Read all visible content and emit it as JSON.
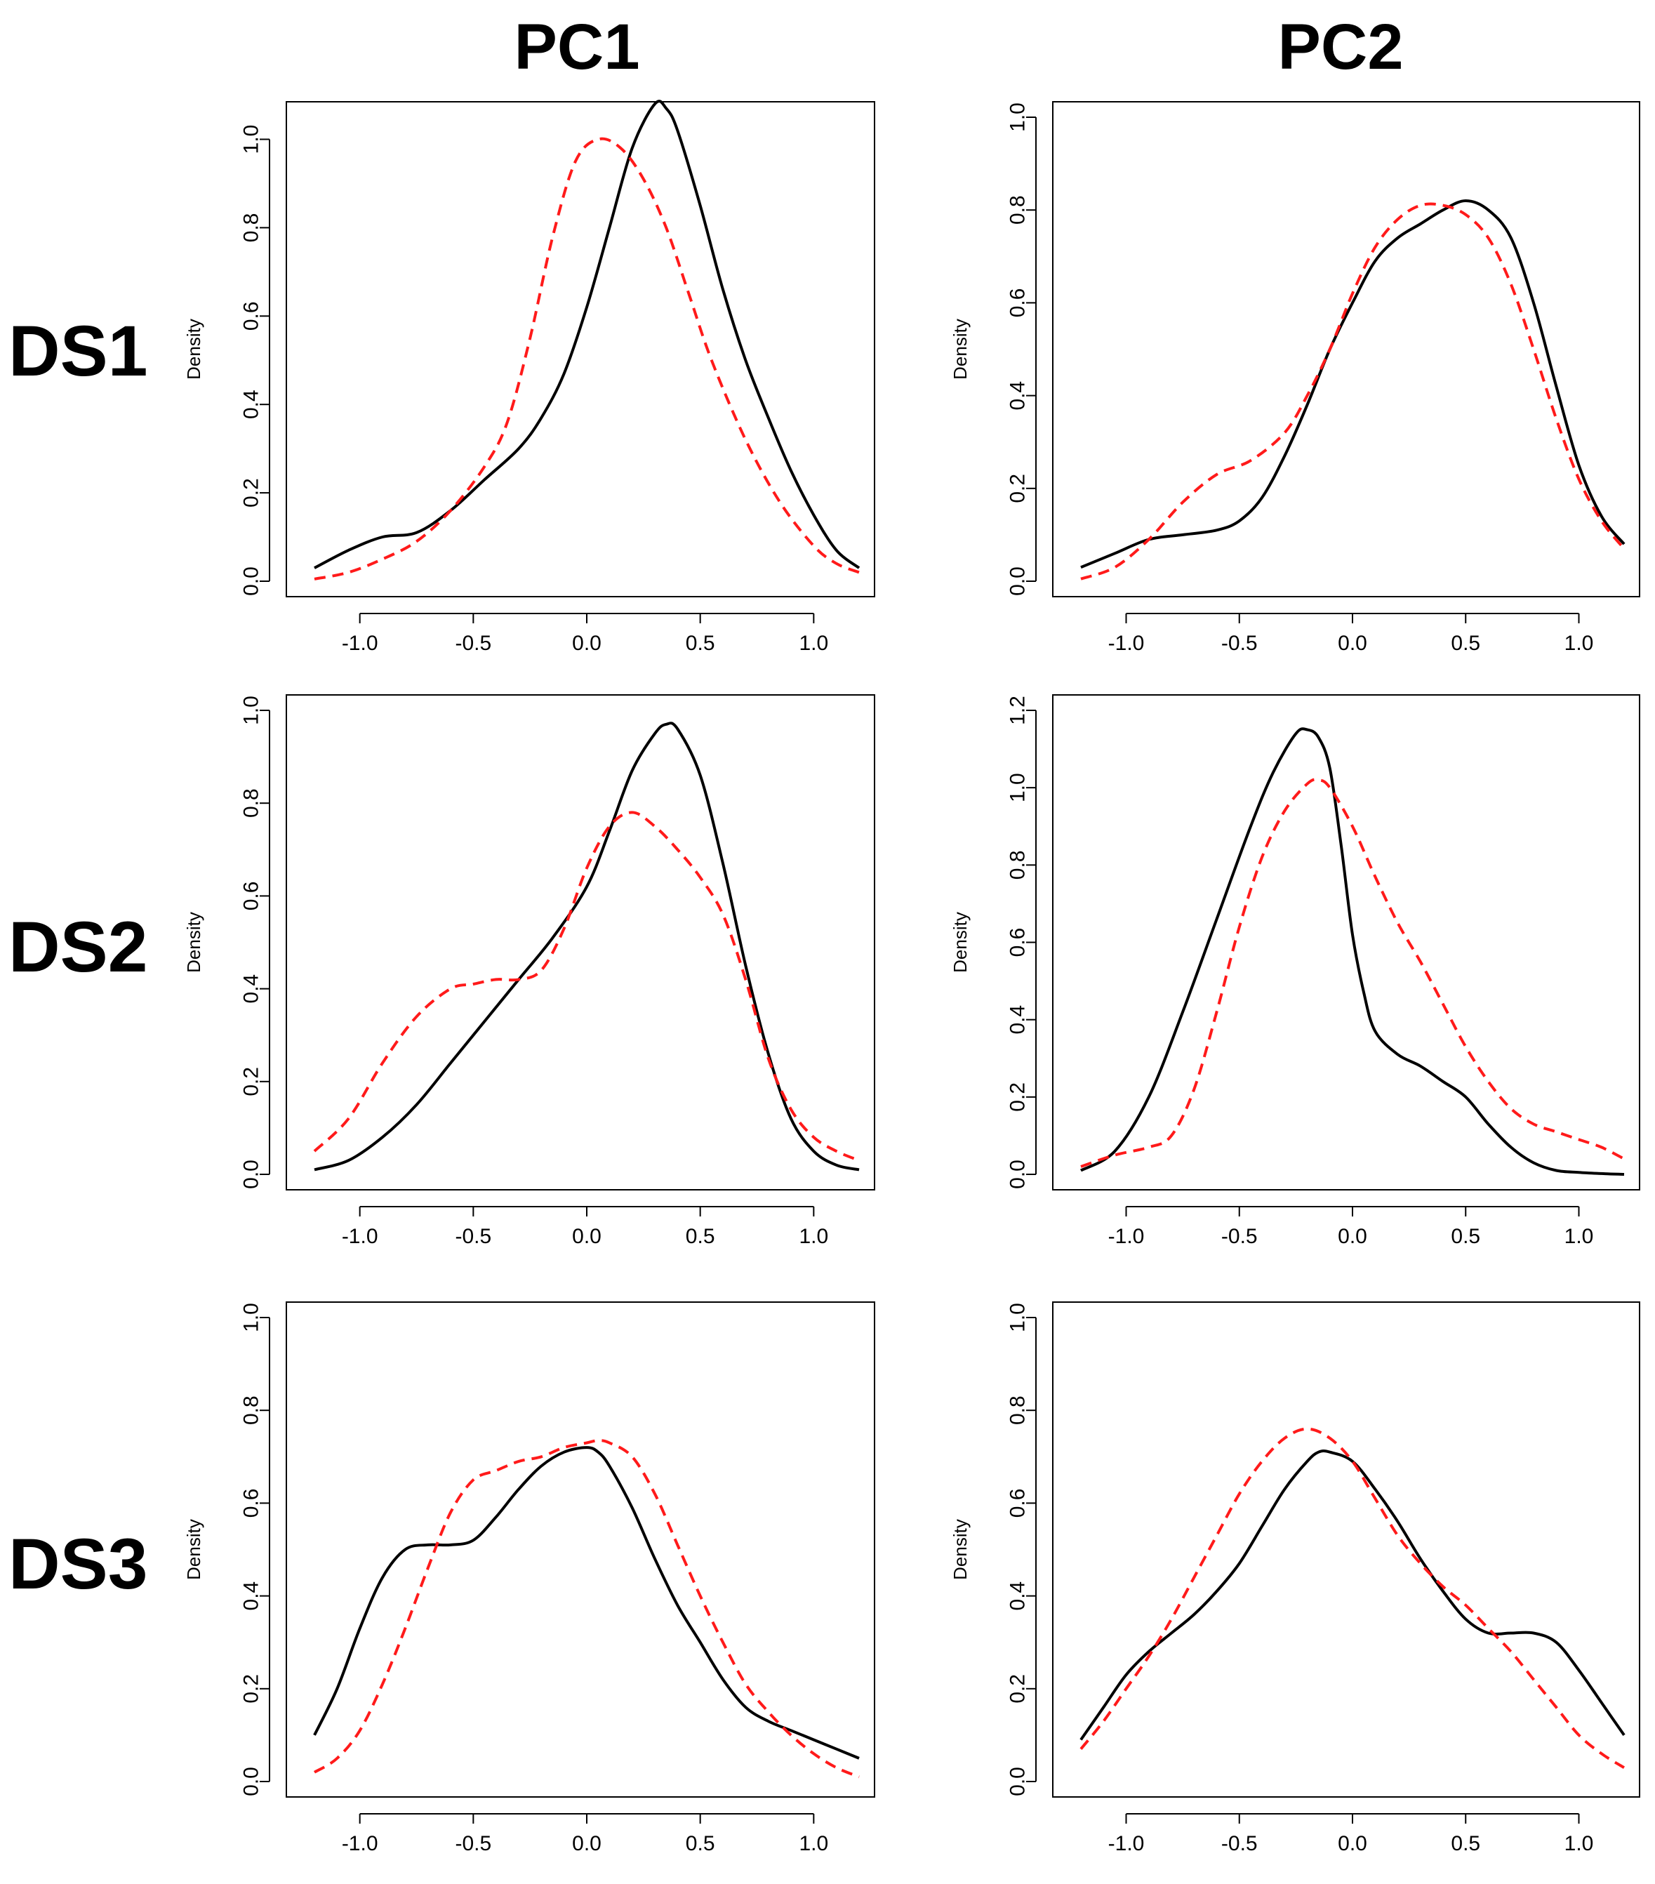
{
  "column_titles": [
    "PC1",
    "PC2"
  ],
  "row_labels": [
    "DS1",
    "DS2",
    "DS3"
  ],
  "colors": {
    "observed": "#000000",
    "simulated": "#ff1a1a"
  },
  "chart_data": [
    {
      "id": "ds1-pc1",
      "type": "line",
      "ylabel": "Density",
      "xlim": [
        -1.2,
        1.2
      ],
      "ylim": [
        0,
        1.05
      ],
      "xticks": [
        "-1.0",
        "-0.5",
        "0.0",
        "0.5",
        "1.0"
      ],
      "xtick_values": [
        -1.0,
        -0.5,
        0.0,
        0.5,
        1.0
      ],
      "yticks": [
        "0.0",
        "0.2",
        "0.4",
        "0.6",
        "0.8",
        "1.0"
      ],
      "ytick_values": [
        0.0,
        0.2,
        0.4,
        0.6,
        0.8,
        1.0
      ],
      "series": [
        {
          "name": "solid-black",
          "style": "solid",
          "x": [
            -1.2,
            -1.05,
            -0.9,
            -0.75,
            -0.6,
            -0.45,
            -0.3,
            -0.2,
            -0.1,
            0.0,
            0.1,
            0.2,
            0.3,
            0.35,
            0.4,
            0.5,
            0.6,
            0.7,
            0.8,
            0.9,
            1.0,
            1.1,
            1.2
          ],
          "y": [
            0.03,
            0.07,
            0.1,
            0.11,
            0.16,
            0.23,
            0.3,
            0.37,
            0.47,
            0.62,
            0.8,
            0.98,
            1.08,
            1.07,
            1.02,
            0.85,
            0.66,
            0.5,
            0.37,
            0.25,
            0.15,
            0.07,
            0.03
          ]
        },
        {
          "name": "dashed-red",
          "style": "dashed",
          "x": [
            -1.2,
            -1.05,
            -0.9,
            -0.75,
            -0.6,
            -0.45,
            -0.35,
            -0.25,
            -0.15,
            -0.05,
            0.05,
            0.15,
            0.25,
            0.35,
            0.45,
            0.55,
            0.7,
            0.85,
            1.0,
            1.1,
            1.2
          ],
          "y": [
            0.005,
            0.02,
            0.05,
            0.09,
            0.16,
            0.26,
            0.36,
            0.55,
            0.78,
            0.95,
            1.0,
            0.98,
            0.91,
            0.8,
            0.65,
            0.5,
            0.32,
            0.18,
            0.08,
            0.04,
            0.02
          ]
        }
      ]
    },
    {
      "id": "ds1-pc2",
      "type": "line",
      "ylabel": "Density",
      "xlim": [
        -1.2,
        1.2
      ],
      "ylim": [
        0,
        1.0
      ],
      "xticks": [
        "-1.0",
        "-0.5",
        "0.0",
        "0.5",
        "1.0"
      ],
      "xtick_values": [
        -1.0,
        -0.5,
        0.0,
        0.5,
        1.0
      ],
      "yticks": [
        "0.0",
        "0.2",
        "0.4",
        "0.6",
        "0.8",
        "1.0"
      ],
      "ytick_values": [
        0.0,
        0.2,
        0.4,
        0.6,
        0.8,
        1.0
      ],
      "series": [
        {
          "name": "solid-black",
          "style": "solid",
          "x": [
            -1.2,
            -1.05,
            -0.9,
            -0.75,
            -0.6,
            -0.5,
            -0.4,
            -0.3,
            -0.2,
            -0.1,
            0.0,
            0.1,
            0.2,
            0.3,
            0.4,
            0.5,
            0.6,
            0.7,
            0.8,
            0.9,
            1.0,
            1.1,
            1.2
          ],
          "y": [
            0.03,
            0.06,
            0.09,
            0.1,
            0.11,
            0.13,
            0.18,
            0.27,
            0.38,
            0.5,
            0.6,
            0.69,
            0.74,
            0.77,
            0.8,
            0.82,
            0.8,
            0.74,
            0.6,
            0.42,
            0.25,
            0.14,
            0.08
          ]
        },
        {
          "name": "dashed-red",
          "style": "dashed",
          "x": [
            -1.2,
            -1.05,
            -0.9,
            -0.75,
            -0.6,
            -0.45,
            -0.3,
            -0.2,
            -0.1,
            0.0,
            0.1,
            0.2,
            0.3,
            0.4,
            0.5,
            0.6,
            0.7,
            0.8,
            0.9,
            1.0,
            1.1,
            1.2
          ],
          "y": [
            0.005,
            0.03,
            0.09,
            0.17,
            0.23,
            0.26,
            0.32,
            0.4,
            0.5,
            0.62,
            0.72,
            0.78,
            0.81,
            0.81,
            0.79,
            0.74,
            0.64,
            0.5,
            0.35,
            0.22,
            0.13,
            0.07
          ]
        }
      ]
    },
    {
      "id": "ds2-pc1",
      "type": "line",
      "ylabel": "Density",
      "xlim": [
        -1.2,
        1.2
      ],
      "ylim": [
        0,
        1.0
      ],
      "xticks": [
        "-1.0",
        "-0.5",
        "0.0",
        "0.5",
        "1.0"
      ],
      "xtick_values": [
        -1.0,
        -0.5,
        0.0,
        0.5,
        1.0
      ],
      "yticks": [
        "0.0",
        "0.2",
        "0.4",
        "0.6",
        "0.8",
        "1.0"
      ],
      "ytick_values": [
        0.0,
        0.2,
        0.4,
        0.6,
        0.8,
        1.0
      ],
      "series": [
        {
          "name": "solid-black",
          "style": "solid",
          "x": [
            -1.2,
            -1.05,
            -0.9,
            -0.75,
            -0.6,
            -0.45,
            -0.3,
            -0.15,
            0.0,
            0.1,
            0.2,
            0.3,
            0.35,
            0.4,
            0.5,
            0.6,
            0.7,
            0.8,
            0.9,
            1.0,
            1.1,
            1.2
          ],
          "y": [
            0.01,
            0.03,
            0.08,
            0.15,
            0.24,
            0.33,
            0.42,
            0.51,
            0.62,
            0.74,
            0.87,
            0.95,
            0.97,
            0.96,
            0.86,
            0.67,
            0.45,
            0.26,
            0.12,
            0.05,
            0.02,
            0.01
          ]
        },
        {
          "name": "dashed-red",
          "style": "dashed",
          "x": [
            -1.2,
            -1.05,
            -0.9,
            -0.75,
            -0.6,
            -0.5,
            -0.4,
            -0.3,
            -0.2,
            -0.1,
            0.0,
            0.1,
            0.2,
            0.3,
            0.4,
            0.5,
            0.6,
            0.7,
            0.8,
            0.9,
            1.0,
            1.1,
            1.2
          ],
          "y": [
            0.05,
            0.12,
            0.24,
            0.34,
            0.4,
            0.41,
            0.42,
            0.42,
            0.44,
            0.53,
            0.66,
            0.75,
            0.78,
            0.75,
            0.7,
            0.64,
            0.56,
            0.42,
            0.25,
            0.14,
            0.08,
            0.05,
            0.03
          ]
        }
      ]
    },
    {
      "id": "ds2-pc2",
      "type": "line",
      "ylabel": "Density",
      "xlim": [
        -1.2,
        1.2
      ],
      "ylim": [
        0,
        1.2
      ],
      "xticks": [
        "-1.0",
        "-0.5",
        "0.0",
        "0.5",
        "1.0"
      ],
      "xtick_values": [
        -1.0,
        -0.5,
        0.0,
        0.5,
        1.0
      ],
      "yticks": [
        "0.0",
        "0.2",
        "0.4",
        "0.6",
        "0.8",
        "1.0",
        "1.2"
      ],
      "ytick_values": [
        0.0,
        0.2,
        0.4,
        0.6,
        0.8,
        1.0,
        1.2
      ],
      "series": [
        {
          "name": "solid-black",
          "style": "solid",
          "x": [
            -1.2,
            -1.05,
            -0.9,
            -0.75,
            -0.6,
            -0.45,
            -0.35,
            -0.25,
            -0.2,
            -0.15,
            -0.1,
            -0.05,
            0.0,
            0.05,
            0.1,
            0.2,
            0.3,
            0.4,
            0.5,
            0.6,
            0.7,
            0.8,
            0.9,
            1.0,
            1.1,
            1.2
          ],
          "y": [
            0.01,
            0.06,
            0.2,
            0.42,
            0.66,
            0.9,
            1.04,
            1.14,
            1.15,
            1.13,
            1.05,
            0.85,
            0.62,
            0.47,
            0.37,
            0.31,
            0.28,
            0.24,
            0.2,
            0.13,
            0.07,
            0.03,
            0.01,
            0.005,
            0.002,
            0.0
          ]
        },
        {
          "name": "dashed-red",
          "style": "dashed",
          "x": [
            -1.2,
            -1.05,
            -0.9,
            -0.8,
            -0.7,
            -0.6,
            -0.5,
            -0.4,
            -0.3,
            -0.2,
            -0.15,
            -0.1,
            0.0,
            0.1,
            0.2,
            0.3,
            0.4,
            0.5,
            0.6,
            0.7,
            0.8,
            0.9,
            1.0,
            1.1,
            1.2
          ],
          "y": [
            0.02,
            0.05,
            0.07,
            0.1,
            0.22,
            0.42,
            0.64,
            0.82,
            0.94,
            1.01,
            1.02,
            1.0,
            0.9,
            0.77,
            0.65,
            0.55,
            0.44,
            0.33,
            0.24,
            0.17,
            0.13,
            0.11,
            0.09,
            0.07,
            0.04
          ]
        }
      ]
    },
    {
      "id": "ds3-pc1",
      "type": "line",
      "ylabel": "Density",
      "xlim": [
        -1.2,
        1.2
      ],
      "ylim": [
        0,
        1.0
      ],
      "xticks": [
        "-1.0",
        "-0.5",
        "0.0",
        "0.5",
        "1.0"
      ],
      "xtick_values": [
        -1.0,
        -0.5,
        0.0,
        0.5,
        1.0
      ],
      "yticks": [
        "0.0",
        "0.2",
        "0.4",
        "0.6",
        "0.8",
        "1.0"
      ],
      "ytick_values": [
        0.0,
        0.2,
        0.4,
        0.6,
        0.8,
        1.0
      ],
      "series": [
        {
          "name": "solid-black",
          "style": "solid",
          "x": [
            -1.2,
            -1.1,
            -1.0,
            -0.9,
            -0.8,
            -0.7,
            -0.6,
            -0.5,
            -0.4,
            -0.3,
            -0.2,
            -0.1,
            0.0,
            0.05,
            0.1,
            0.2,
            0.3,
            0.4,
            0.5,
            0.6,
            0.7,
            0.8,
            0.9,
            1.0,
            1.1,
            1.2
          ],
          "y": [
            0.1,
            0.2,
            0.33,
            0.44,
            0.5,
            0.51,
            0.51,
            0.52,
            0.57,
            0.63,
            0.68,
            0.71,
            0.72,
            0.71,
            0.68,
            0.59,
            0.48,
            0.38,
            0.3,
            0.22,
            0.16,
            0.13,
            0.11,
            0.09,
            0.07,
            0.05
          ]
        },
        {
          "name": "dashed-red",
          "style": "dashed",
          "x": [
            -1.2,
            -1.1,
            -1.0,
            -0.9,
            -0.8,
            -0.7,
            -0.6,
            -0.5,
            -0.4,
            -0.3,
            -0.2,
            -0.1,
            0.0,
            0.05,
            0.1,
            0.2,
            0.3,
            0.4,
            0.5,
            0.6,
            0.7,
            0.8,
            0.9,
            1.0,
            1.1,
            1.2
          ],
          "y": [
            0.02,
            0.05,
            0.11,
            0.21,
            0.33,
            0.46,
            0.58,
            0.65,
            0.67,
            0.69,
            0.7,
            0.72,
            0.73,
            0.735,
            0.73,
            0.7,
            0.62,
            0.51,
            0.4,
            0.3,
            0.21,
            0.15,
            0.1,
            0.06,
            0.03,
            0.01
          ]
        }
      ]
    },
    {
      "id": "ds3-pc2",
      "type": "line",
      "ylabel": "Density",
      "xlim": [
        -1.2,
        1.2
      ],
      "ylim": [
        0,
        1.0
      ],
      "xticks": [
        "-1.0",
        "-0.5",
        "0.0",
        "0.5",
        "1.0"
      ],
      "xtick_values": [
        -1.0,
        -0.5,
        0.0,
        0.5,
        1.0
      ],
      "yticks": [
        "0.0",
        "0.2",
        "0.4",
        "0.6",
        "0.8",
        "1.0"
      ],
      "ytick_values": [
        0.0,
        0.2,
        0.4,
        0.6,
        0.8,
        1.0
      ],
      "series": [
        {
          "name": "solid-black",
          "style": "solid",
          "x": [
            -1.2,
            -1.1,
            -1.0,
            -0.9,
            -0.8,
            -0.7,
            -0.6,
            -0.5,
            -0.4,
            -0.3,
            -0.2,
            -0.15,
            -0.1,
            0.0,
            0.1,
            0.2,
            0.3,
            0.4,
            0.5,
            0.6,
            0.7,
            0.8,
            0.9,
            1.0,
            1.1,
            1.2
          ],
          "y": [
            0.09,
            0.16,
            0.23,
            0.28,
            0.32,
            0.36,
            0.41,
            0.47,
            0.55,
            0.63,
            0.69,
            0.71,
            0.71,
            0.69,
            0.63,
            0.56,
            0.48,
            0.41,
            0.35,
            0.32,
            0.32,
            0.32,
            0.3,
            0.24,
            0.17,
            0.1
          ]
        },
        {
          "name": "dashed-red",
          "style": "dashed",
          "x": [
            -1.2,
            -1.1,
            -1.0,
            -0.9,
            -0.8,
            -0.7,
            -0.6,
            -0.5,
            -0.4,
            -0.3,
            -0.2,
            -0.1,
            0.0,
            0.1,
            0.2,
            0.3,
            0.4,
            0.5,
            0.6,
            0.7,
            0.8,
            0.9,
            1.0,
            1.1,
            1.2
          ],
          "y": [
            0.07,
            0.13,
            0.2,
            0.27,
            0.35,
            0.44,
            0.53,
            0.62,
            0.69,
            0.74,
            0.76,
            0.74,
            0.69,
            0.61,
            0.53,
            0.47,
            0.42,
            0.38,
            0.33,
            0.28,
            0.22,
            0.16,
            0.1,
            0.06,
            0.03
          ]
        }
      ]
    }
  ]
}
